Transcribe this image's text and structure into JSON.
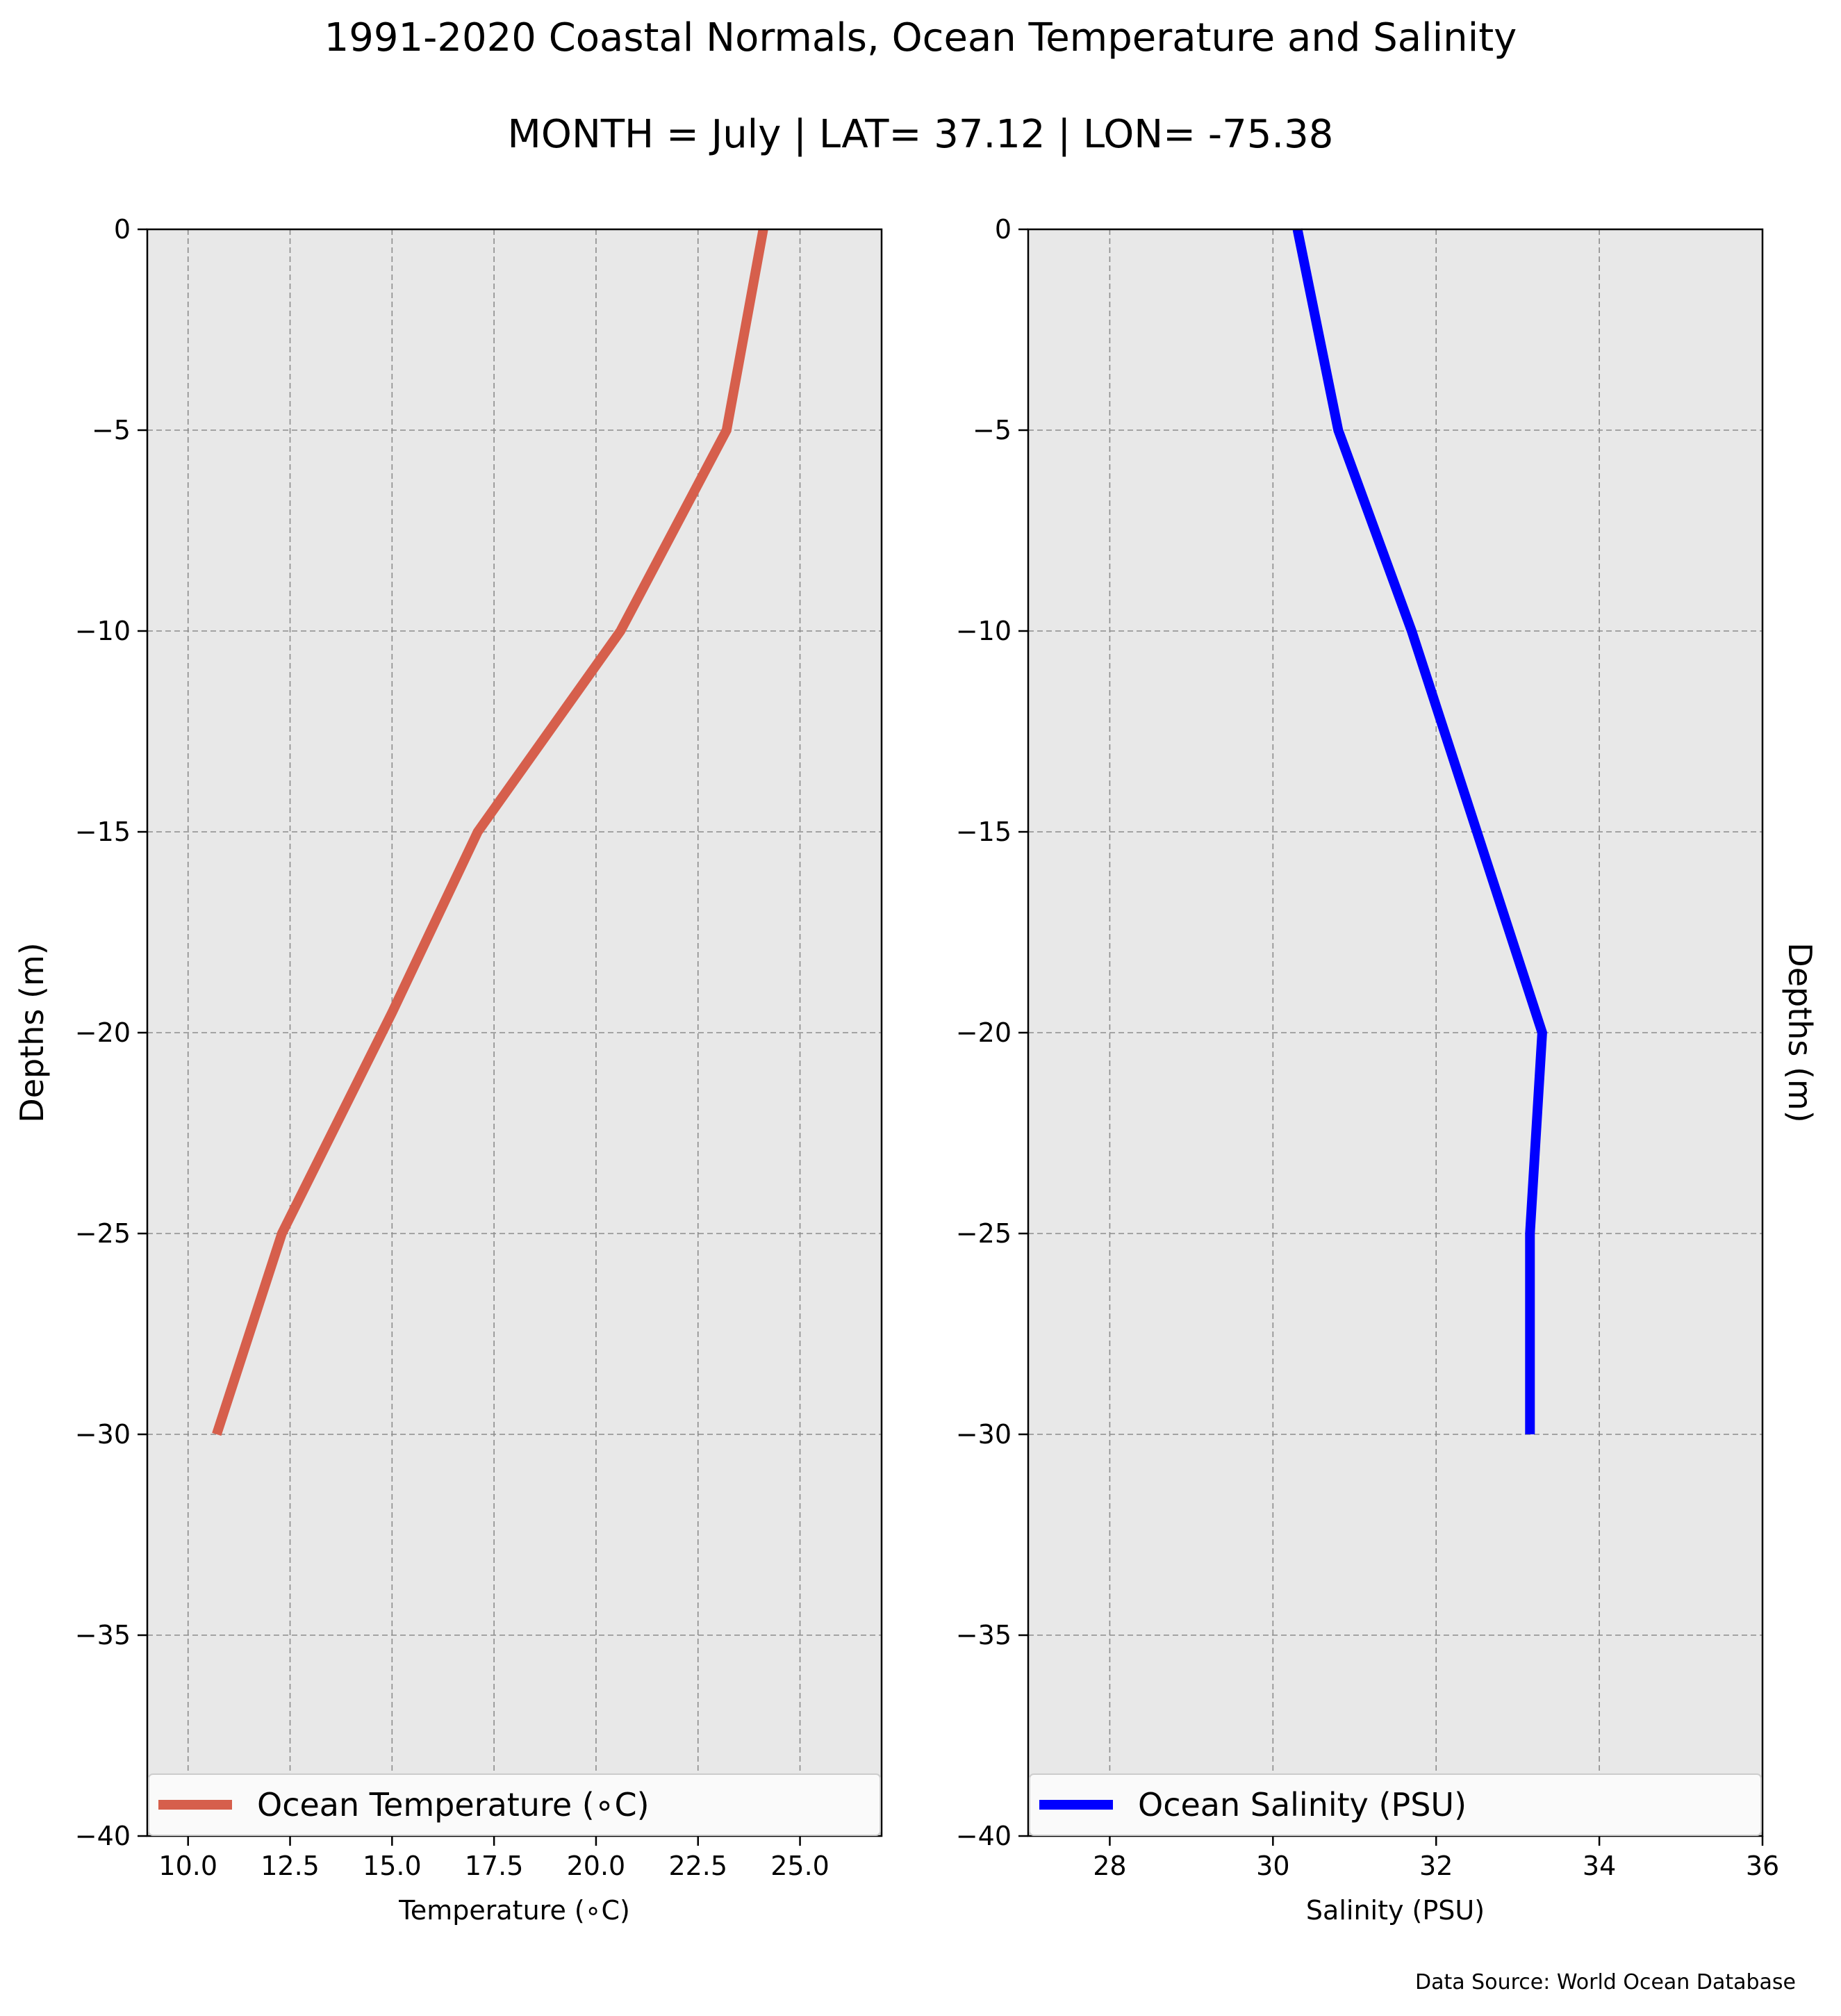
{
  "title_line1": "1991-2020 Coastal Normals, Ocean Temperature and Salinity",
  "title_line2": "MONTH = July | LAT= 37.12 | LON= -75.38",
  "source": "Data Source: World Ocean Database",
  "chart_data": [
    {
      "type": "line",
      "xlabel": "Temperature (∘C)",
      "ylabel": "Depths (m)",
      "xlim": [
        9,
        27
      ],
      "ylim": [
        -40,
        0
      ],
      "xticks": [
        10.0,
        12.5,
        15.0,
        17.5,
        20.0,
        22.5,
        25.0
      ],
      "xtick_labels": [
        "10.0",
        "12.5",
        "15.0",
        "17.5",
        "20.0",
        "22.5",
        "25.0"
      ],
      "yticks": [
        0,
        -5,
        -10,
        -15,
        -20,
        -25,
        -30,
        -35,
        -40
      ],
      "ytick_labels": [
        "0",
        "−5",
        "−10",
        "−15",
        "−20",
        "−25",
        "−30",
        "−35",
        "−40"
      ],
      "grid": true,
      "legend": "lower center",
      "series": [
        {
          "name": "Ocean Temperature (∘C)",
          "color": "#d65f4c",
          "x": [
            24.1,
            23.2,
            20.6,
            17.1,
            15.0,
            12.3,
            10.7
          ],
          "y": [
            0,
            -5,
            -10,
            -15,
            -19.5,
            -25,
            -30
          ]
        }
      ]
    },
    {
      "type": "line",
      "xlabel": "Salinity (PSU)",
      "ylabel": "Depths (m)",
      "xlim": [
        27,
        36
      ],
      "ylim": [
        -40,
        0
      ],
      "xticks": [
        28,
        30,
        32,
        34,
        36
      ],
      "xtick_labels": [
        "28",
        "30",
        "32",
        "34",
        "36"
      ],
      "yticks": [
        0,
        -5,
        -10,
        -15,
        -20,
        -25,
        -30,
        -35,
        -40
      ],
      "ytick_labels": [
        "0",
        "−5",
        "−10",
        "−15",
        "−20",
        "−25",
        "−30",
        "−35",
        "−40"
      ],
      "grid": true,
      "legend": "lower center",
      "series": [
        {
          "name": "Ocean Salinity (PSU)",
          "color": "#0000ff",
          "x": [
            30.3,
            30.8,
            31.7,
            32.5,
            33.3,
            33.15,
            33.15
          ],
          "y": [
            0,
            -5,
            -10,
            -15,
            -20,
            -25,
            -30
          ]
        }
      ]
    }
  ]
}
